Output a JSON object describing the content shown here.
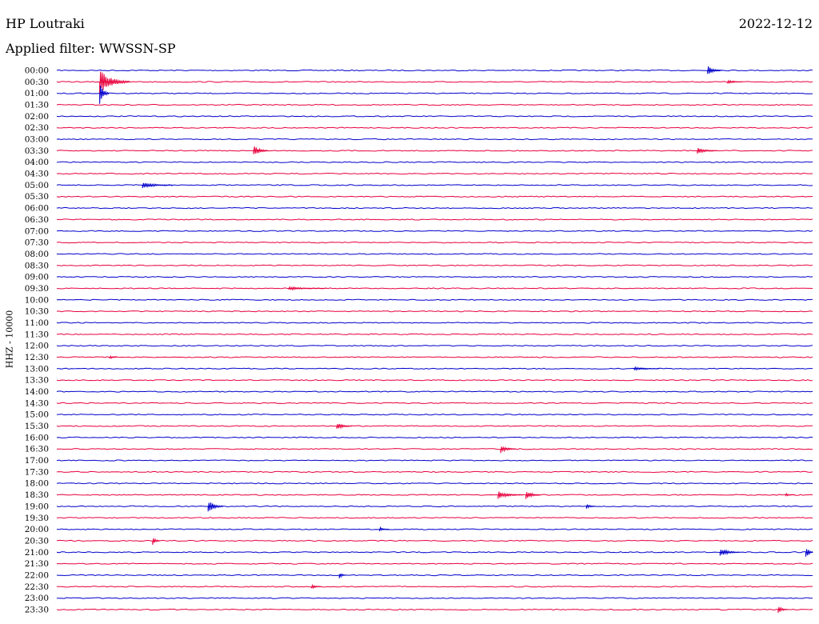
{
  "header": {
    "station": "HP Loutraki",
    "date": "2022-12-12",
    "filter": "Applied filter: WWSSN-SP"
  },
  "chart_data": {
    "type": "line",
    "title": "HP Loutraki",
    "date": "2022-12-12",
    "ylabel": "HHZ - 10000",
    "row_labels": [
      "00:00",
      "00:30",
      "01:00",
      "01:30",
      "02:00",
      "02:30",
      "03:00",
      "03:30",
      "04:00",
      "04:30",
      "05:00",
      "05:30",
      "06:00",
      "06:30",
      "07:00",
      "07:30",
      "08:00",
      "08:30",
      "09:00",
      "09:30",
      "10:00",
      "10:30",
      "11:00",
      "11:30",
      "12:00",
      "12:30",
      "13:00",
      "13:30",
      "14:00",
      "14:30",
      "15:00",
      "15:30",
      "16:00",
      "16:30",
      "17:00",
      "17:30",
      "18:00",
      "18:30",
      "19:00",
      "19:30",
      "20:00",
      "20:30",
      "21:00",
      "21:30",
      "22:00",
      "22:30",
      "23:00",
      "23:30"
    ],
    "colors": [
      "#0000cc",
      "#e8003d"
    ],
    "row_width_minutes": 30,
    "events": [
      {
        "row": 0,
        "minute": 25.8,
        "amp": 6,
        "dur": 0.6
      },
      {
        "row": 1,
        "minute": 1.7,
        "amp": 16,
        "dur": 1.2
      },
      {
        "row": 1,
        "minute": 26.6,
        "amp": 3,
        "dur": 0.6
      },
      {
        "row": 2,
        "minute": 1.7,
        "amp": 14,
        "dur": 0.4
      },
      {
        "row": 7,
        "minute": 7.8,
        "amp": 8,
        "dur": 0.6
      },
      {
        "row": 7,
        "minute": 25.4,
        "amp": 4,
        "dur": 0.8
      },
      {
        "row": 10,
        "minute": 3.4,
        "amp": 4,
        "dur": 1.2
      },
      {
        "row": 19,
        "minute": 9.2,
        "amp": 2,
        "dur": 1.5
      },
      {
        "row": 25,
        "minute": 2.1,
        "amp": 3,
        "dur": 0.3
      },
      {
        "row": 26,
        "minute": 22.9,
        "amp": 2,
        "dur": 1.0
      },
      {
        "row": 31,
        "minute": 11.1,
        "amp": 5,
        "dur": 0.6
      },
      {
        "row": 33,
        "minute": 17.6,
        "amp": 5,
        "dur": 0.6
      },
      {
        "row": 37,
        "minute": 17.5,
        "amp": 5,
        "dur": 1.0
      },
      {
        "row": 37,
        "minute": 18.6,
        "amp": 6,
        "dur": 0.6
      },
      {
        "row": 37,
        "minute": 28.9,
        "amp": 2,
        "dur": 0.4
      },
      {
        "row": 38,
        "minute": 6.0,
        "amp": 9,
        "dur": 0.6
      },
      {
        "row": 38,
        "minute": 21.0,
        "amp": 3,
        "dur": 0.4
      },
      {
        "row": 40,
        "minute": 12.8,
        "amp": 3,
        "dur": 0.4
      },
      {
        "row": 41,
        "minute": 3.8,
        "amp": 6,
        "dur": 0.3
      },
      {
        "row": 42,
        "minute": 26.3,
        "amp": 6,
        "dur": 0.8
      },
      {
        "row": 42,
        "minute": 29.7,
        "amp": 9,
        "dur": 0.8
      },
      {
        "row": 44,
        "minute": 11.2,
        "amp": 4,
        "dur": 0.3
      },
      {
        "row": 45,
        "minute": 10.1,
        "amp": 3,
        "dur": 0.4
      },
      {
        "row": 47,
        "minute": 28.6,
        "amp": 5,
        "dur": 0.4
      }
    ]
  }
}
